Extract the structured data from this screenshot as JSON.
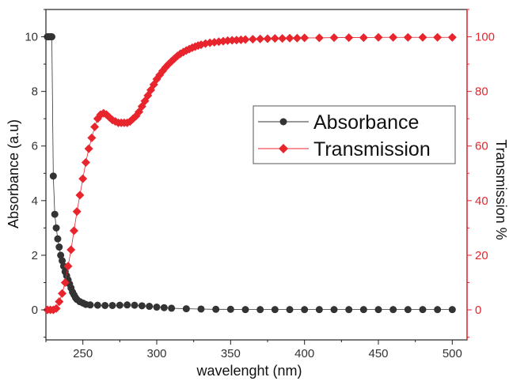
{
  "chart_data": {
    "type": "scatter",
    "xlabel": "wavelenght (nm)",
    "ylabel": "Absorbance (a.u)",
    "y2label": "Transmission %",
    "xlim": [
      225,
      510
    ],
    "ylim": [
      -1.1,
      11
    ],
    "y2lim": [
      -11,
      110
    ],
    "xticks": [
      "250",
      "300",
      "350",
      "400",
      "450",
      "500"
    ],
    "yticks": [
      "0",
      "2",
      "4",
      "6",
      "8",
      "10"
    ],
    "y2ticks": [
      "0",
      "20",
      "40",
      "60",
      "80",
      "100"
    ],
    "legend_position": "right-center",
    "series": [
      {
        "name": "Absorbance",
        "axis": "left",
        "color": "#333333",
        "marker": "circle",
        "x": [
          226,
          227,
          228,
          229,
          230,
          231,
          232,
          233,
          234,
          235,
          236,
          237,
          238,
          239,
          240,
          241,
          242,
          243,
          244,
          245,
          246,
          248,
          250,
          252,
          255,
          260,
          265,
          270,
          275,
          280,
          285,
          290,
          295,
          300,
          305,
          310,
          320,
          330,
          340,
          350,
          360,
          370,
          380,
          390,
          400,
          410,
          420,
          430,
          440,
          450,
          460,
          470,
          480,
          490,
          500
        ],
        "y": [
          10,
          10,
          10,
          10,
          4.9,
          3.5,
          3.0,
          2.6,
          2.3,
          2.0,
          1.8,
          1.6,
          1.4,
          1.25,
          1.1,
          0.95,
          0.8,
          0.65,
          0.55,
          0.45,
          0.38,
          0.3,
          0.25,
          0.2,
          0.18,
          0.17,
          0.16,
          0.16,
          0.17,
          0.18,
          0.17,
          0.15,
          0.13,
          0.1,
          0.08,
          0.06,
          0.04,
          0.03,
          0.02,
          0.02,
          0.01,
          0.01,
          0.01,
          0.01,
          0.01,
          0.01,
          0.01,
          0.01,
          0.01,
          0.01,
          0.01,
          0.01,
          0.01,
          0.01,
          0.01
        ]
      },
      {
        "name": "Transmission",
        "axis": "right",
        "color": "#e8242c",
        "marker": "diamond",
        "x": [
          226,
          228,
          230,
          232,
          234,
          236,
          238,
          240,
          242,
          244,
          246,
          248,
          250,
          252,
          254,
          256,
          258,
          260,
          262,
          264,
          266,
          268,
          270,
          272,
          274,
          276,
          278,
          280,
          282,
          284,
          286,
          288,
          290,
          292,
          294,
          296,
          298,
          300,
          302,
          304,
          306,
          308,
          310,
          312,
          314,
          316,
          318,
          320,
          322,
          324,
          326,
          328,
          330,
          333,
          336,
          339,
          342,
          345,
          348,
          351,
          354,
          357,
          360,
          365,
          370,
          375,
          380,
          385,
          390,
          395,
          400,
          410,
          420,
          430,
          440,
          450,
          460,
          470,
          480,
          490,
          500
        ],
        "y": [
          0,
          0,
          0,
          0.5,
          3,
          6,
          10,
          16,
          22,
          29,
          36,
          42,
          48,
          54,
          59,
          63,
          67,
          70,
          71.5,
          72,
          71.5,
          70.5,
          69.5,
          69,
          68.5,
          68.5,
          68.5,
          68.5,
          69,
          70,
          71,
          72.5,
          74.5,
          76.5,
          78.5,
          80.5,
          82.5,
          84.5,
          86,
          87.5,
          88.8,
          90,
          91,
          92,
          93,
          93.8,
          94.4,
          95,
          95.5,
          96,
          96.4,
          96.8,
          97.1,
          97.5,
          97.8,
          98,
          98.2,
          98.4,
          98.6,
          98.7,
          98.8,
          98.9,
          99,
          99.1,
          99.2,
          99.3,
          99.4,
          99.4,
          99.5,
          99.5,
          99.6,
          99.6,
          99.7,
          99.7,
          99.7,
          99.8,
          99.8,
          99.8,
          99.8,
          99.8,
          99.8
        ]
      }
    ]
  }
}
